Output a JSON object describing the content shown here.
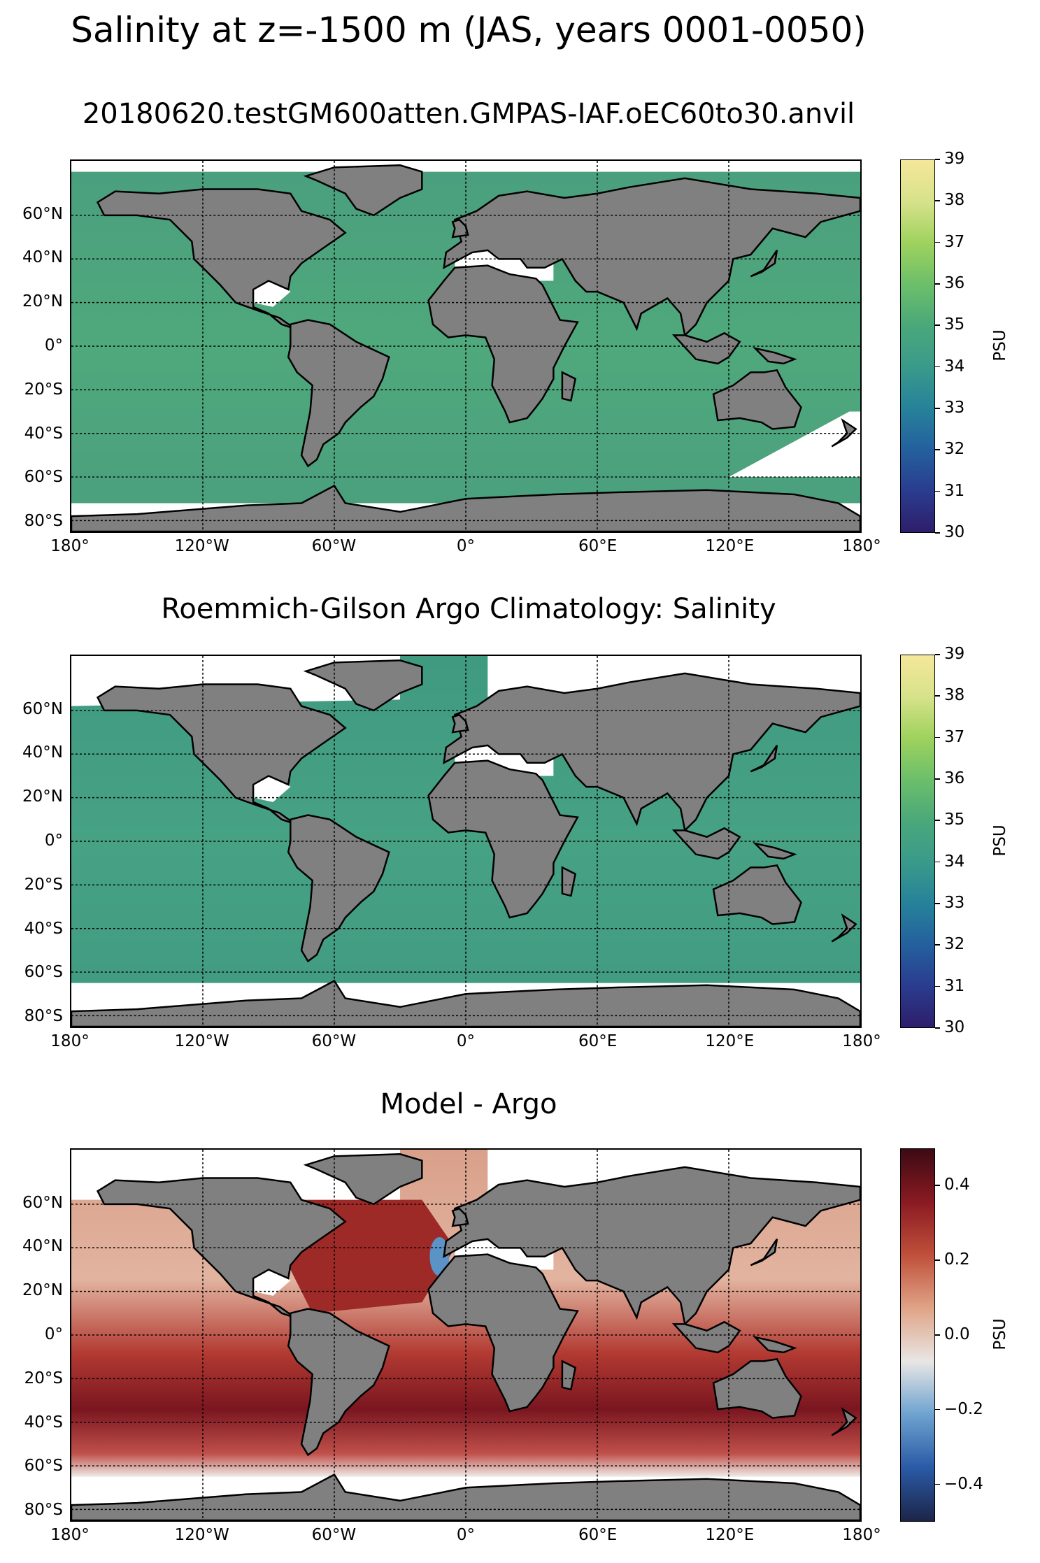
{
  "figure": {
    "suptitle": "Salinity at z=-1500 m (JAS, years 0001-0050)"
  },
  "panels": [
    {
      "title": "20180620.testGM600atten.GMPAS-IAF.oEC60to30.anvil",
      "ocean_color": "#4a9e7e",
      "colorbar": {
        "label": "PSU",
        "ticks": [
          "30",
          "31",
          "32",
          "33",
          "34",
          "35",
          "36",
          "37",
          "38",
          "39"
        ],
        "colors": [
          "#2e1e6b",
          "#2a3c8f",
          "#24609e",
          "#26829a",
          "#3a9a8a",
          "#4aa87a",
          "#6cbf6a",
          "#9fd25e",
          "#d7e28a",
          "#f5e79a"
        ]
      }
    },
    {
      "title": "Roemmich-Gilson Argo Climatology: Salinity",
      "ocean_color": "#3f9a80",
      "colorbar": {
        "label": "PSU",
        "ticks": [
          "30",
          "31",
          "32",
          "33",
          "34",
          "35",
          "36",
          "37",
          "38",
          "39"
        ],
        "colors": [
          "#2e1e6b",
          "#2a3c8f",
          "#24609e",
          "#26829a",
          "#3a9a8a",
          "#4aa87a",
          "#6cbf6a",
          "#9fd25e",
          "#d7e28a",
          "#f5e79a"
        ]
      }
    },
    {
      "title": "Model - Argo",
      "ocean_color": "#d9896e",
      "colorbar": {
        "label": "PSU",
        "ticks": [
          "−0.4",
          "−0.2",
          "0.0",
          "0.2",
          "0.4"
        ],
        "colors": [
          "#1c2548",
          "#2a5aa6",
          "#6da2cf",
          "#e8e6e4",
          "#e0a488",
          "#c0503a",
          "#8a1a22",
          "#3c0a14"
        ]
      }
    }
  ],
  "axes": {
    "lat_labels": [
      "60°N",
      "40°N",
      "20°N",
      "0°",
      "20°S",
      "40°S",
      "60°S",
      "80°S"
    ],
    "lon_labels": [
      "180°",
      "120°W",
      "60°W",
      "0°",
      "60°E",
      "120°E",
      "180°"
    ]
  },
  "colors": {
    "land": "#808080",
    "missing": "#ffffff"
  }
}
